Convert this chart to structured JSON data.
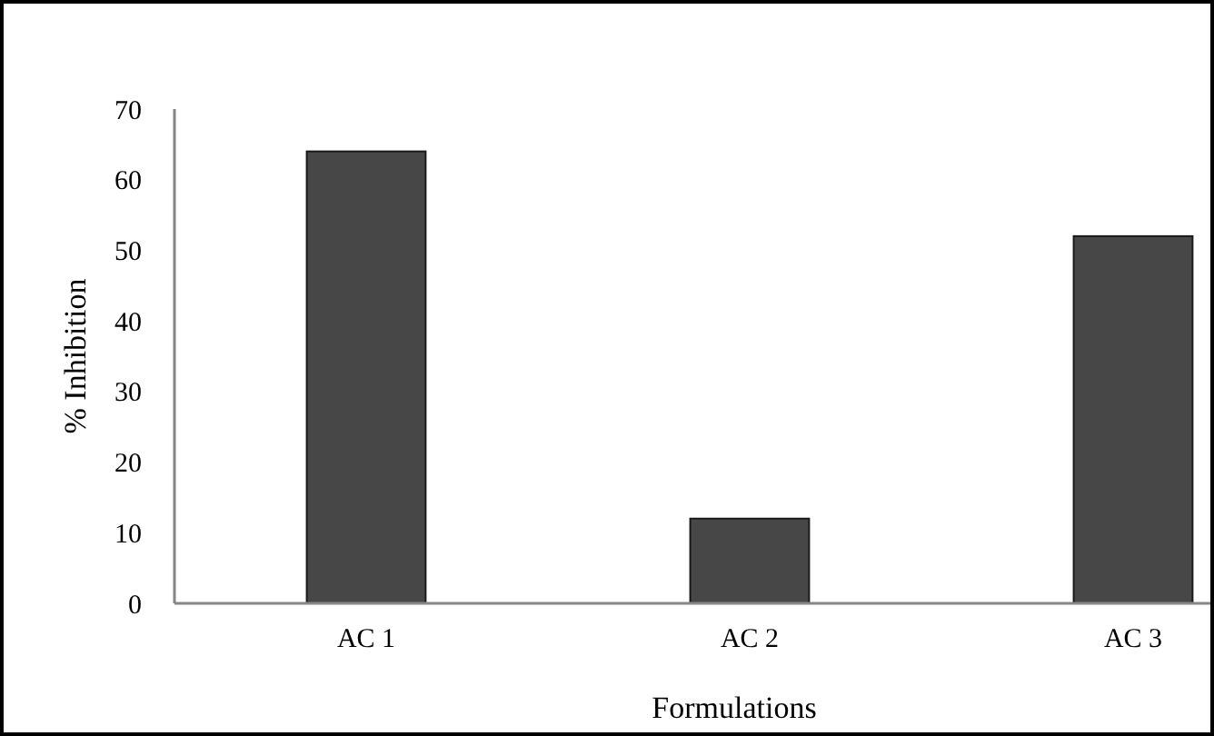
{
  "chart_data": {
    "type": "bar",
    "xlabel": "Formulations",
    "ylabel": "% Inhibition",
    "categories": [
      "AC 1",
      "AC 2",
      "AC 3"
    ],
    "values": [
      64,
      12,
      52
    ],
    "color": "#474747",
    "ylim": [
      0,
      70
    ],
    "yticks": [
      0,
      10,
      20,
      30,
      40,
      50,
      60,
      70
    ],
    "grid": false
  }
}
